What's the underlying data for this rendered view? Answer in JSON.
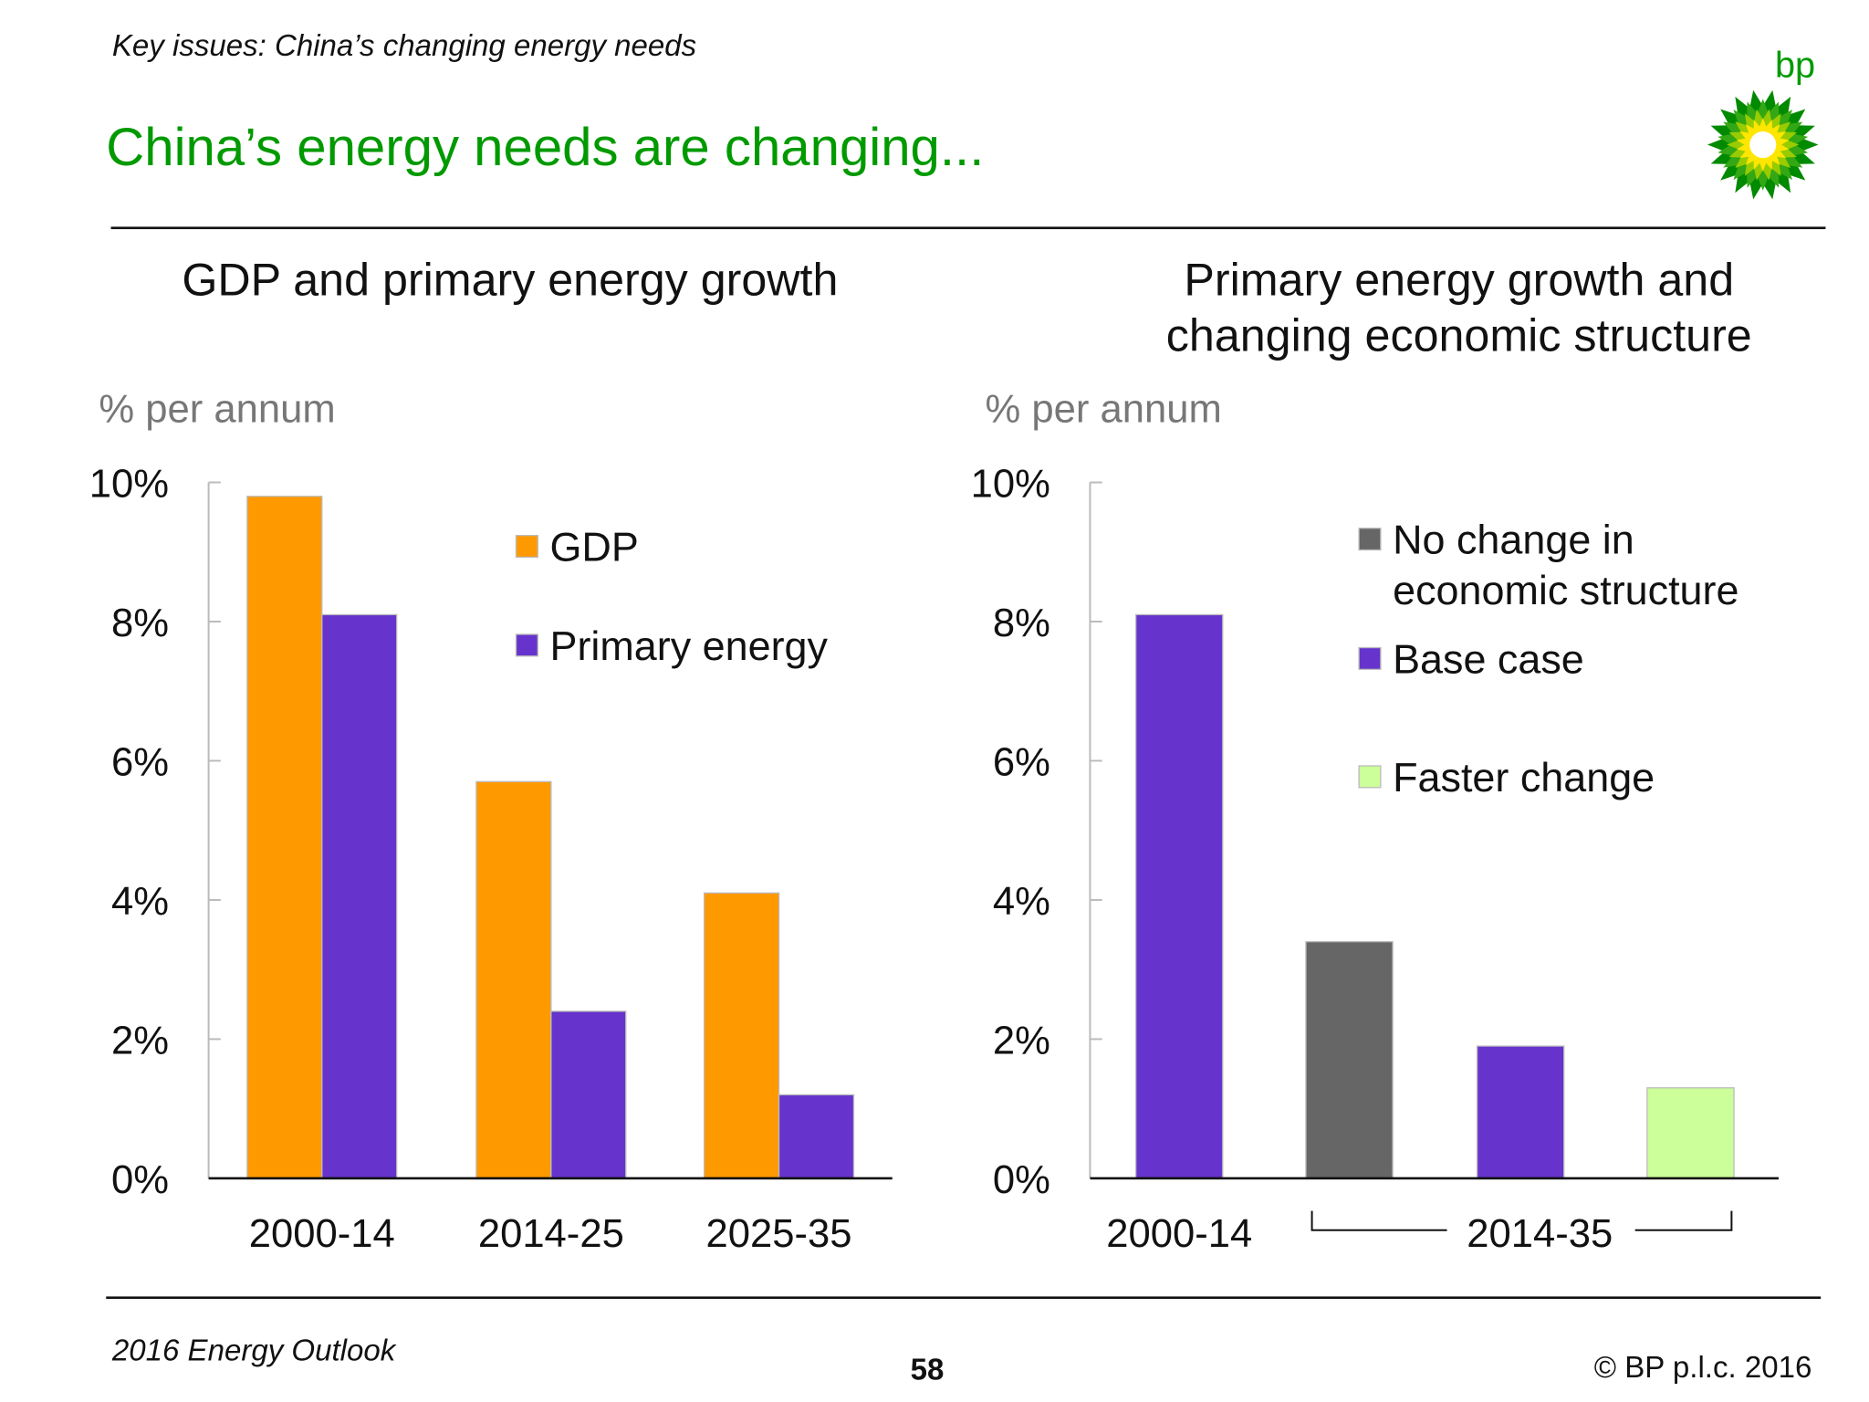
{
  "header": {
    "kicker": "Key issues: China’s changing energy needs",
    "title": "China’s energy needs are changing...",
    "logo_text": "bp",
    "logo_icon": "bp-helios-logo"
  },
  "footer": {
    "left": "2016 Energy Outlook",
    "page": "58",
    "right": "© BP p.l.c. 2016"
  },
  "colors": {
    "title_green": "#009a00",
    "gdp": "#ff9900",
    "primary_energy": "#6633cc",
    "no_change": "#666666",
    "base_case": "#6633cc",
    "faster_change": "#ccff99"
  },
  "chart_data": [
    {
      "type": "bar",
      "title": "GDP and primary energy growth",
      "ylabel": "% per annum",
      "ylim": [
        0,
        10
      ],
      "yticks": [
        "0%",
        "2%",
        "4%",
        "6%",
        "8%",
        "10%"
      ],
      "categories": [
        "2000-14",
        "2014-25",
        "2025-35"
      ],
      "series": [
        {
          "name": "GDP",
          "color": "#ff9900",
          "values": [
            9.8,
            5.7,
            4.1
          ]
        },
        {
          "name": "Primary energy",
          "color": "#6633cc",
          "values": [
            8.1,
            2.4,
            1.2
          ]
        }
      ],
      "legend": "top-right",
      "grid": false
    },
    {
      "type": "bar",
      "title": "Primary energy growth and changing economic structure",
      "title_lines": [
        "Primary energy growth and",
        "changing economic structure"
      ],
      "ylabel": "% per annum",
      "ylim": [
        0,
        10
      ],
      "yticks": [
        "0%",
        "2%",
        "4%",
        "6%",
        "8%",
        "10%"
      ],
      "categories": [
        "2000-14",
        "2014-35"
      ],
      "bars": [
        {
          "period": "2000-14",
          "series": "Base case",
          "color": "#6633cc",
          "value": 8.1
        },
        {
          "period": "2014-35",
          "series": "No change in economic structure",
          "color": "#666666",
          "value": 3.4
        },
        {
          "period": "2014-35",
          "series": "Base case",
          "color": "#6633cc",
          "value": 1.9
        },
        {
          "period": "2014-35",
          "series": "Faster change",
          "color": "#ccff99",
          "value": 1.3
        }
      ],
      "legend_entries": [
        {
          "lines": [
            "No change in",
            "economic structure"
          ],
          "color": "#666666"
        },
        {
          "lines": [
            "Base case"
          ],
          "color": "#6633cc"
        },
        {
          "lines": [
            "Faster change"
          ],
          "color": "#ccff99"
        }
      ],
      "legend": "top-right",
      "grid": false
    }
  ]
}
